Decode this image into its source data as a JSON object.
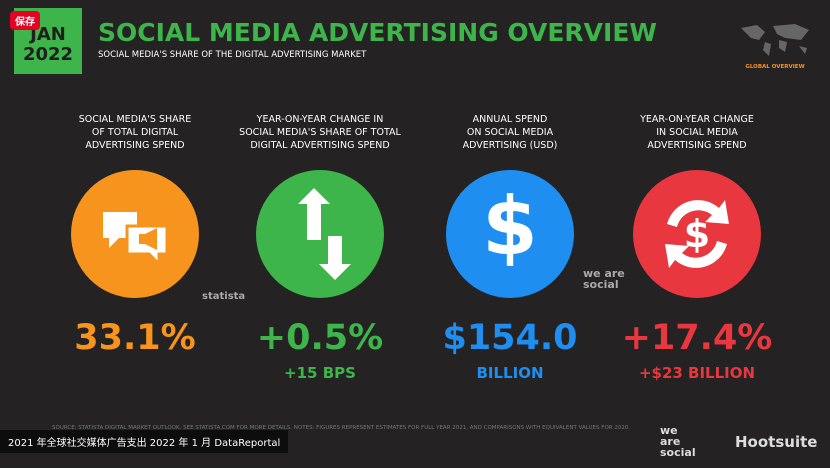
{
  "header": {
    "badge_month": "JAN",
    "badge_year": "2022",
    "save_button": "保存",
    "title": "SOCIAL MEDIA ADVERTISING OVERVIEW",
    "subtitle": "SOCIAL MEDIA'S SHARE OF THE DIGITAL ADVERTISING MARKET",
    "map_label": "GLOBAL OVERVIEW"
  },
  "metrics": [
    {
      "label_lines": [
        "SOCIAL MEDIA'S SHARE",
        "OF TOTAL DIGITAL",
        "ADVERTISING SPEND"
      ],
      "value": "33.1%"
    },
    {
      "label_lines": [
        "YEAR-ON-YEAR CHANGE IN",
        "SOCIAL MEDIA'S SHARE OF TOTAL",
        "DIGITAL ADVERTISING SPEND"
      ],
      "value": "+0.5%",
      "sub": "+15 BPS"
    },
    {
      "label_lines": [
        "ANNUAL SPEND",
        "ON SOCIAL MEDIA",
        "ADVERTISING (USD)"
      ],
      "value": "$154.0",
      "sub": "BILLION"
    },
    {
      "label_lines": [
        "YEAR-ON-YEAR CHANGE",
        "IN SOCIAL MEDIA",
        "ADVERTISING SPEND"
      ],
      "value": "+17.4%",
      "sub": "+$23 BILLION"
    }
  ],
  "logos": {
    "statista": "statista",
    "we_are_social": "we are social",
    "hootsuite": "Hootsuite"
  },
  "footer": {
    "source": "SOURCE: STATISTA DIGITAL MARKET OUTLOOK. SEE STATISTA.COM FOR MORE DETAILS. NOTES: FIGURES REPRESENT ESTIMATES FOR FULL YEAR 2021, AND COMPARISONS WITH EQUIVALENT VALUES FOR 2020.",
    "caption": "2021 年全球社交媒体广告支出 2022 年 1 月 DataReportal"
  }
}
